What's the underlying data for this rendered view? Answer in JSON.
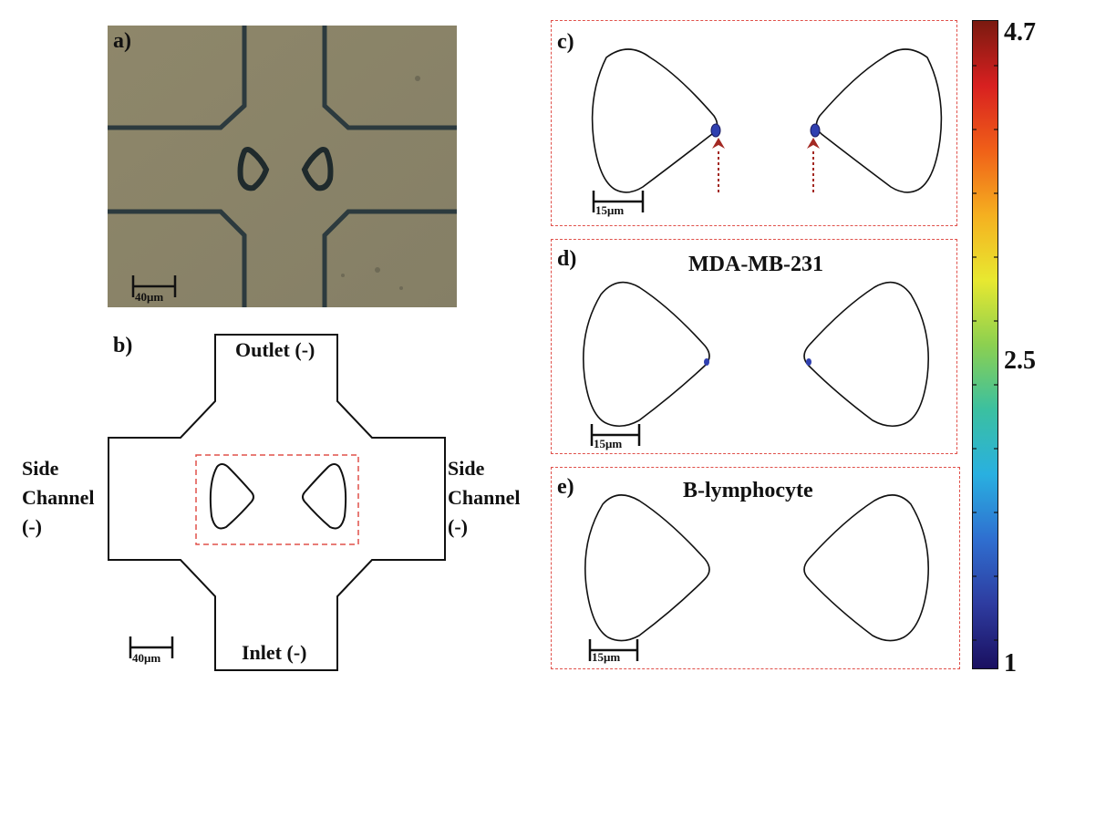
{
  "panels": {
    "a": {
      "label": "a)",
      "scale_bar": "40μm",
      "photo_bg": "#8a8468",
      "channel_edge": "#2c3a3e"
    },
    "b": {
      "label": "b)",
      "outlet": "Outlet (-)",
      "inlet": "Inlet (-)",
      "side_left": [
        "Side",
        "Channel",
        "(-)"
      ],
      "side_right": [
        "Side",
        "Channel",
        "(-)"
      ],
      "scale_bar": "40μm"
    },
    "c": {
      "label": "c)",
      "title": "",
      "scale_bar": "15μm"
    },
    "d": {
      "label": "d)",
      "title": "MDA-MB-231",
      "scale_bar": "15μm"
    },
    "e": {
      "label": "e)",
      "title": "B-lymphocyte",
      "scale_bar": "15μm"
    }
  },
  "colorbar": {
    "max": "4.7",
    "mid": "2.5",
    "min": "1",
    "colors": [
      "#1a1060",
      "#2e3ca0",
      "#2f6fd0",
      "#29b0e0",
      "#3bc0a0",
      "#8cd050",
      "#e8e830",
      "#f5b020",
      "#f06018",
      "#d82020",
      "#7a1a10"
    ]
  },
  "colors": {
    "dashed": "#e0504a",
    "arrow": "#a32822",
    "cell": "#3040b0",
    "outline": "#111111"
  }
}
